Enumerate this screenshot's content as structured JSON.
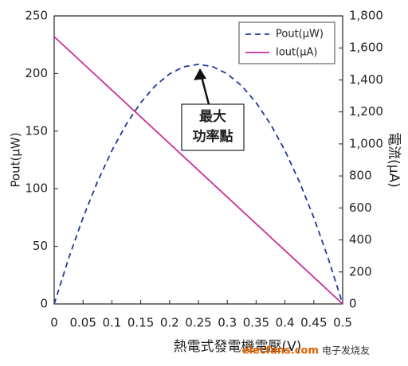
{
  "chart_data": {
    "type": "line",
    "x_label": "熱電式發電機電壓(V)",
    "y_label": "Pout(μW)",
    "y2_label": "電流(μA)",
    "xlim": [
      0,
      0.5
    ],
    "xticks": [
      0,
      0.05,
      0.1,
      0.15,
      0.2,
      0.25,
      0.3,
      0.35,
      0.4,
      0.45,
      0.5
    ],
    "ylim": [
      0,
      250
    ],
    "yticks": [
      0,
      50,
      100,
      150,
      200,
      250
    ],
    "y2lim": [
      0,
      1800
    ],
    "y2ticks": [
      0,
      200,
      400,
      600,
      800,
      {
        "value": 1000,
        "label": "1,000"
      },
      {
        "value": 1200,
        "label": "1,200"
      },
      {
        "value": 1400,
        "label": "1,400"
      },
      {
        "value": 1600,
        "label": "1,600"
      },
      {
        "value": 1800,
        "label": "1,800"
      }
    ],
    "legend": "upper right",
    "series": [
      {
        "name": "Pout(μW)",
        "color": "#1f3a9c",
        "dashed": true,
        "x": [
          0,
          0.025,
          0.05,
          0.075,
          0.1,
          0.125,
          0.15,
          0.175,
          0.2,
          0.225,
          0.25,
          0.275,
          0.3,
          0.325,
          0.35,
          0.375,
          0.4,
          0.425,
          0.45,
          0.475,
          0.5
        ],
        "values": [
          0,
          39.5,
          74.9,
          106.1,
          133.1,
          156,
          174.7,
          189.3,
          199.7,
          205.9,
          208,
          205.9,
          199.7,
          189.3,
          174.7,
          156,
          133.1,
          106.1,
          74.9,
          39.5,
          0
        ]
      },
      {
        "name": "Iout(μA)",
        "color": "#c8309a",
        "axis": "y2",
        "dashed": false,
        "x": [
          0,
          0.5
        ],
        "values": [
          1670,
          0
        ]
      }
    ],
    "annotation": {
      "lines": [
        "最大",
        "功率點"
      ],
      "x": 0.25,
      "y": 208
    },
    "watermark": [
      "elecfans.com",
      "电子发烧友"
    ]
  }
}
